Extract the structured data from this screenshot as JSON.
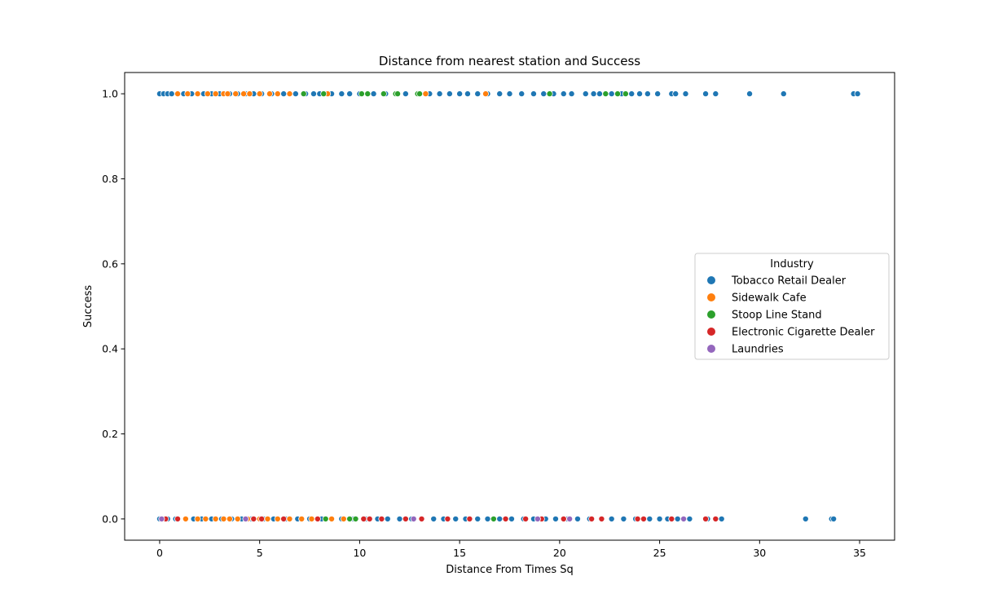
{
  "chart_data": {
    "type": "scatter",
    "title": "Distance from nearest station and Success",
    "xlabel": "Distance From Times Sq",
    "ylabel": "Success",
    "xlim": [
      -1.75,
      36.75
    ],
    "ylim": [
      -0.05,
      1.05
    ],
    "xticks": [
      0,
      5,
      10,
      15,
      20,
      25,
      30,
      35
    ],
    "yticks": [
      0.0,
      0.2,
      0.4,
      0.6,
      0.8,
      1.0
    ],
    "xtick_labels": [
      "0",
      "5",
      "10",
      "15",
      "20",
      "25",
      "30",
      "35"
    ],
    "ytick_labels": [
      "0.0",
      "0.2",
      "0.4",
      "0.6",
      "0.8",
      "1.0"
    ],
    "grid": false,
    "legend": {
      "title": "Industry",
      "placement": "center-right"
    },
    "series": [
      {
        "name": "Tobacco Retail Dealer",
        "color": "#1f77b4",
        "points": [
          [
            0.0,
            1
          ],
          [
            0.2,
            1
          ],
          [
            0.4,
            1
          ],
          [
            0.6,
            1
          ],
          [
            0.9,
            1
          ],
          [
            1.2,
            1
          ],
          [
            1.6,
            1
          ],
          [
            1.9,
            1
          ],
          [
            2.2,
            1
          ],
          [
            2.6,
            1
          ],
          [
            3.0,
            1
          ],
          [
            3.5,
            1
          ],
          [
            3.9,
            1
          ],
          [
            4.3,
            1
          ],
          [
            4.7,
            1
          ],
          [
            5.1,
            1
          ],
          [
            5.6,
            1
          ],
          [
            6.2,
            1
          ],
          [
            6.8,
            1
          ],
          [
            7.3,
            1
          ],
          [
            7.7,
            1
          ],
          [
            8.0,
            1
          ],
          [
            8.6,
            1
          ],
          [
            9.1,
            1
          ],
          [
            9.5,
            1
          ],
          [
            10.0,
            1
          ],
          [
            10.7,
            1
          ],
          [
            11.3,
            1
          ],
          [
            11.8,
            1
          ],
          [
            12.3,
            1
          ],
          [
            12.9,
            1
          ],
          [
            13.5,
            1
          ],
          [
            14.0,
            1
          ],
          [
            14.5,
            1
          ],
          [
            15.0,
            1
          ],
          [
            15.4,
            1
          ],
          [
            15.9,
            1
          ],
          [
            16.4,
            1
          ],
          [
            17.0,
            1
          ],
          [
            17.5,
            1
          ],
          [
            18.1,
            1
          ],
          [
            18.7,
            1
          ],
          [
            19.2,
            1
          ],
          [
            19.7,
            1
          ],
          [
            20.2,
            1
          ],
          [
            20.6,
            1
          ],
          [
            21.3,
            1
          ],
          [
            21.7,
            1
          ],
          [
            22.0,
            1
          ],
          [
            22.6,
            1
          ],
          [
            23.1,
            1
          ],
          [
            23.6,
            1
          ],
          [
            24.0,
            1
          ],
          [
            24.4,
            1
          ],
          [
            24.9,
            1
          ],
          [
            25.6,
            1
          ],
          [
            25.8,
            1
          ],
          [
            26.3,
            1
          ],
          [
            27.3,
            1
          ],
          [
            27.8,
            1
          ],
          [
            29.5,
            1
          ],
          [
            31.2,
            1
          ],
          [
            34.7,
            1
          ],
          [
            34.9,
            1
          ],
          [
            0.0,
            0
          ],
          [
            0.4,
            0
          ],
          [
            0.8,
            0
          ],
          [
            1.3,
            0
          ],
          [
            1.7,
            0
          ],
          [
            2.1,
            0
          ],
          [
            2.6,
            0
          ],
          [
            3.1,
            0
          ],
          [
            3.6,
            0
          ],
          [
            4.1,
            0
          ],
          [
            4.6,
            0
          ],
          [
            5.2,
            0
          ],
          [
            5.7,
            0
          ],
          [
            6.3,
            0
          ],
          [
            6.9,
            0
          ],
          [
            7.5,
            0
          ],
          [
            8.1,
            0
          ],
          [
            8.6,
            0
          ],
          [
            9.1,
            0
          ],
          [
            9.7,
            0
          ],
          [
            10.3,
            0
          ],
          [
            10.9,
            0
          ],
          [
            11.4,
            0
          ],
          [
            12.0,
            0
          ],
          [
            12.6,
            0
          ],
          [
            13.1,
            0
          ],
          [
            13.7,
            0
          ],
          [
            14.2,
            0
          ],
          [
            14.8,
            0
          ],
          [
            15.3,
            0
          ],
          [
            15.9,
            0
          ],
          [
            16.4,
            0
          ],
          [
            17.0,
            0
          ],
          [
            17.6,
            0
          ],
          [
            18.2,
            0
          ],
          [
            18.7,
            0
          ],
          [
            19.3,
            0
          ],
          [
            19.8,
            0
          ],
          [
            20.4,
            0
          ],
          [
            20.9,
            0
          ],
          [
            21.5,
            0
          ],
          [
            22.1,
            0
          ],
          [
            22.6,
            0
          ],
          [
            23.2,
            0
          ],
          [
            23.8,
            0
          ],
          [
            24.5,
            0
          ],
          [
            25.0,
            0
          ],
          [
            25.4,
            0
          ],
          [
            25.9,
            0
          ],
          [
            26.5,
            0
          ],
          [
            27.4,
            0
          ],
          [
            28.1,
            0
          ],
          [
            32.3,
            0
          ],
          [
            33.6,
            0
          ],
          [
            33.7,
            0
          ]
        ]
      },
      {
        "name": "Sidewalk Cafe",
        "color": "#ff7f0e",
        "points": [
          [
            0.9,
            1
          ],
          [
            1.4,
            1
          ],
          [
            1.9,
            1
          ],
          [
            2.4,
            1
          ],
          [
            2.8,
            1
          ],
          [
            3.2,
            1
          ],
          [
            3.4,
            1
          ],
          [
            3.8,
            1
          ],
          [
            4.2,
            1
          ],
          [
            4.5,
            1
          ],
          [
            5.0,
            1
          ],
          [
            5.5,
            1
          ],
          [
            5.9,
            1
          ],
          [
            6.5,
            1
          ],
          [
            8.4,
            1
          ],
          [
            13.3,
            1
          ],
          [
            16.3,
            1
          ],
          [
            0.9,
            0
          ],
          [
            1.3,
            0
          ],
          [
            1.9,
            0
          ],
          [
            2.3,
            0
          ],
          [
            2.8,
            0
          ],
          [
            3.2,
            0
          ],
          [
            3.5,
            0
          ],
          [
            3.9,
            0
          ],
          [
            4.4,
            0
          ],
          [
            5.0,
            0
          ],
          [
            5.4,
            0
          ],
          [
            5.9,
            0
          ],
          [
            6.5,
            0
          ],
          [
            7.1,
            0
          ],
          [
            7.6,
            0
          ],
          [
            8.6,
            0
          ],
          [
            9.2,
            0
          ]
        ]
      },
      {
        "name": "Stoop Line Stand",
        "color": "#2ca02c",
        "points": [
          [
            7.2,
            1
          ],
          [
            8.2,
            1
          ],
          [
            10.1,
            1
          ],
          [
            10.4,
            1
          ],
          [
            11.2,
            1
          ],
          [
            11.8,
            1
          ],
          [
            11.9,
            1
          ],
          [
            12.9,
            1
          ],
          [
            13.0,
            1
          ],
          [
            19.5,
            1
          ],
          [
            22.3,
            1
          ],
          [
            22.9,
            1
          ],
          [
            23.3,
            1
          ],
          [
            8.3,
            0
          ],
          [
            9.5,
            0
          ],
          [
            9.8,
            0
          ],
          [
            16.7,
            0
          ]
        ]
      },
      {
        "name": "Electronic Cigarette Dealer",
        "color": "#d62728",
        "points": [
          [
            0.3,
            0
          ],
          [
            0.9,
            0
          ],
          [
            4.7,
            0
          ],
          [
            5.1,
            0
          ],
          [
            6.2,
            0
          ],
          [
            7.9,
            0
          ],
          [
            10.2,
            0
          ],
          [
            10.5,
            0
          ],
          [
            11.1,
            0
          ],
          [
            12.3,
            0
          ],
          [
            13.1,
            0
          ],
          [
            14.4,
            0
          ],
          [
            15.5,
            0
          ],
          [
            17.3,
            0
          ],
          [
            18.3,
            0
          ],
          [
            19.1,
            0
          ],
          [
            20.2,
            0
          ],
          [
            21.6,
            0
          ],
          [
            22.1,
            0
          ],
          [
            23.9,
            0
          ],
          [
            24.2,
            0
          ],
          [
            25.6,
            0
          ],
          [
            27.3,
            0
          ],
          [
            27.8,
            0
          ]
        ]
      },
      {
        "name": "Laundries",
        "color": "#9467bd",
        "points": [
          [
            0.1,
            0
          ],
          [
            4.3,
            0
          ],
          [
            12.7,
            0
          ],
          [
            18.9,
            0
          ],
          [
            20.5,
            0
          ],
          [
            26.2,
            0
          ]
        ]
      }
    ]
  }
}
